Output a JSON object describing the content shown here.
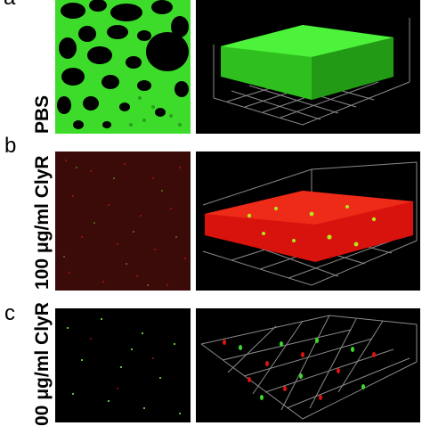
{
  "panels": [
    {
      "letter": "a",
      "label": "PBS"
    },
    {
      "letter": "b",
      "label": "100 μg/ml ClyR"
    },
    {
      "letter": "c",
      "label": "00 μg/ml ClyR"
    }
  ],
  "colors": {
    "live_stain": "#3ddc2a",
    "dead_stain": "#e0140c",
    "background": "#000000",
    "grid": "#8a8a8a"
  }
}
